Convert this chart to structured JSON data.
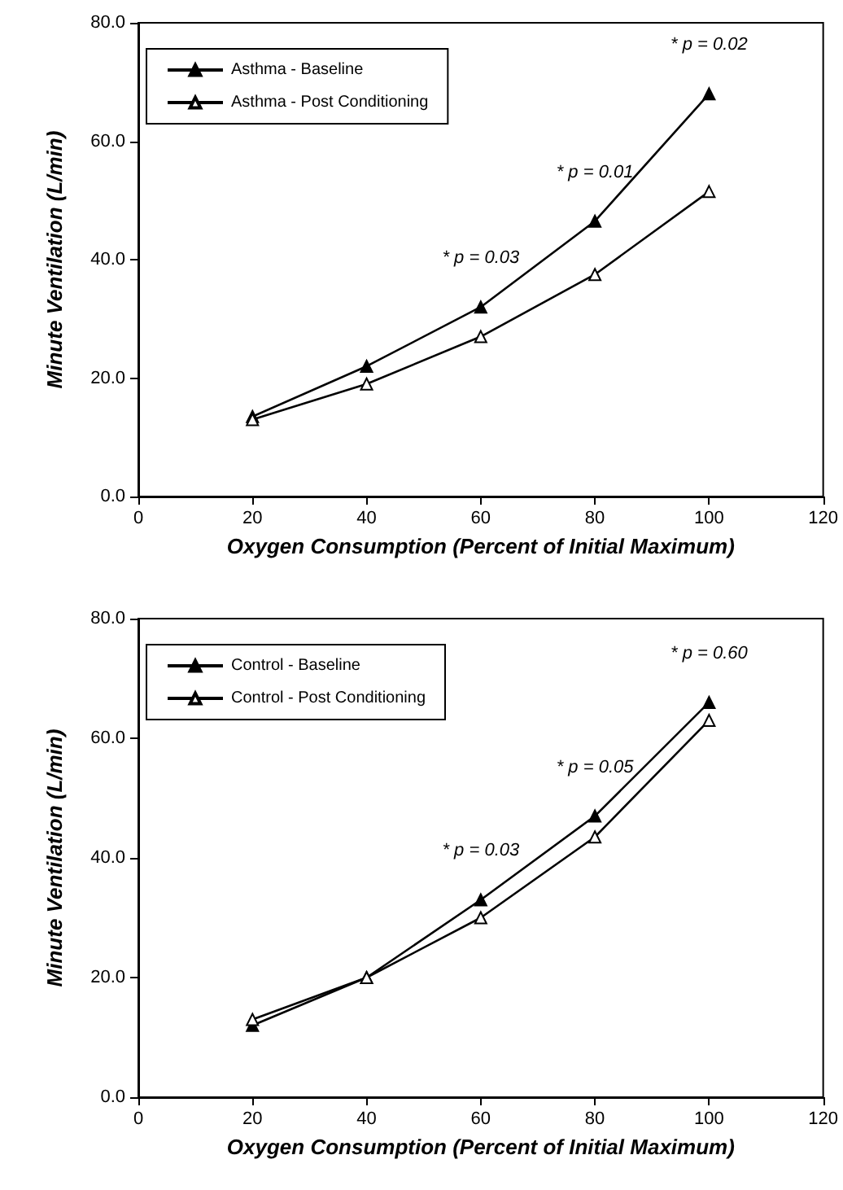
{
  "chart_data": [
    {
      "type": "line",
      "xlabel": "Oxygen Consumption (Percent of Initial Maximum)",
      "ylabel": "Minute Ventilation (L/min)",
      "x": [
        20,
        40,
        60,
        80,
        100
      ],
      "series": [
        {
          "name": "Asthma - Baseline",
          "color": "#000000",
          "values": [
            13.5,
            22,
            32,
            46.5,
            68
          ]
        },
        {
          "name": "Asthma - Post Conditioning",
          "color": "#000000",
          "values": [
            13,
            19,
            27,
            37.5,
            51.5
          ]
        }
      ],
      "xlim": [
        0,
        120
      ],
      "xticks": [
        0,
        20,
        40,
        60,
        80,
        100,
        120
      ],
      "ylim": [
        0,
        80
      ],
      "yticks": [
        {
          "value": 0,
          "label": "0.0"
        },
        {
          "value": 20,
          "label": "20.0"
        },
        {
          "value": 40,
          "label": "40.0"
        },
        {
          "value": 60,
          "label": "60.0"
        },
        {
          "value": 80,
          "label": "80.0"
        }
      ],
      "annotations": [
        "* p = 0.03",
        "* p = 0.01",
        "* p = 0.02"
      ],
      "grid": false,
      "legend": "top left",
      "marker": "triangle",
      "line_style": "solid"
    },
    {
      "type": "line",
      "xlabel": "Oxygen Consumption (Percent of Initial Maximum)",
      "ylabel": "Minute Ventilation (L/min)",
      "x": [
        20,
        40,
        60,
        80,
        100
      ],
      "series": [
        {
          "name": "Control - Baseline",
          "color": "#000000",
          "values": [
            12,
            20,
            33,
            47,
            66
          ]
        },
        {
          "name": "Control - Post Conditioning",
          "color": "#000000",
          "values": [
            13,
            20,
            30,
            43.5,
            63
          ]
        }
      ],
      "xlim": [
        0,
        120
      ],
      "xticks": [
        0,
        20,
        40,
        60,
        80,
        100,
        120
      ],
      "ylim": [
        0,
        80
      ],
      "yticks": [
        {
          "value": 0,
          "label": "0.0"
        },
        {
          "value": 20,
          "label": "20.0"
        },
        {
          "value": 40,
          "label": "40.0"
        },
        {
          "value": 60,
          "label": "60.0"
        },
        {
          "value": 80,
          "label": "80.0"
        }
      ],
      "annotations": [
        "* p = 0.03",
        "* p = 0.05",
        "* p = 0.60"
      ],
      "grid": false,
      "legend": "top left",
      "marker": "triangle",
      "line_style": "solid"
    }
  ]
}
